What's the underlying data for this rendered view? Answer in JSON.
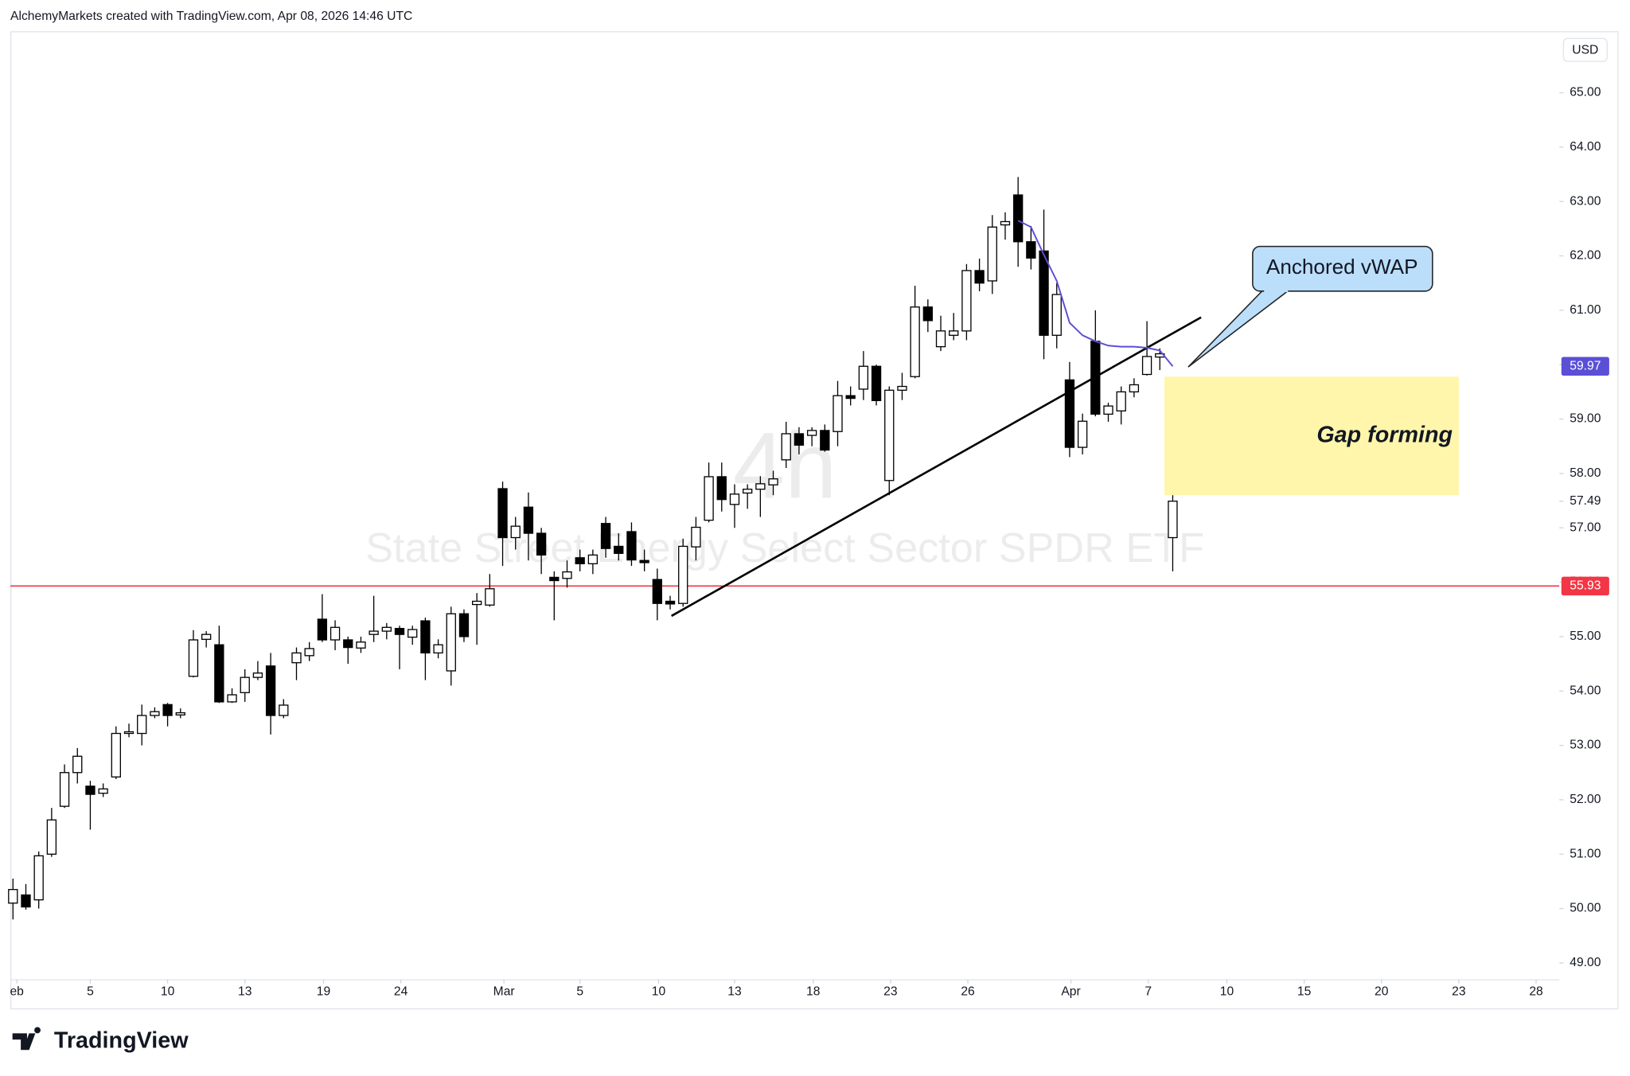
{
  "header": {
    "credit": "AlchemyMarkets created with TradingView.com, Apr 08, 2026 14:46 UTC",
    "logo": "TradingView"
  },
  "chart_data": {
    "type": "candlestick",
    "interval": "4h",
    "symbol": "State Street Energy Select Sector SPDR ETF",
    "currency": "USD",
    "open": [
      50.1,
      50.25,
      50.16,
      51.0,
      51.88,
      52.5,
      52.25,
      52.12,
      52.42,
      53.22,
      53.22,
      53.55,
      53.75,
      53.56,
      54.27,
      54.95,
      54.85,
      53.8,
      53.97,
      54.25,
      54.46,
      53.55,
      54.52,
      54.65,
      55.32,
      54.94,
      54.94,
      54.79,
      55.04,
      55.1,
      55.15,
      54.99,
      55.29,
      54.7,
      54.37,
      55.42,
      55.59,
      55.58,
      57.72,
      56.82,
      57.38,
      56.9,
      56.09,
      56.07,
      56.45,
      56.34,
      57.08,
      56.66,
      56.93,
      56.4,
      56.05,
      55.65,
      55.61,
      56.65,
      57.14,
      57.94,
      57.43,
      57.64,
      57.71,
      57.79,
      58.25,
      58.73,
      58.7,
      58.79,
      58.77,
      59.43,
      59.55,
      59.97,
      57.87,
      59.53,
      59.78,
      61.06,
      60.33,
      60.54,
      60.62,
      61.73,
      61.54,
      62.57,
      63.12,
      62.26,
      62.09,
      60.54,
      59.72,
      58.48,
      60.43,
      59.09,
      59.15,
      59.5,
      59.82,
      60.14,
      56.82
    ],
    "high": [
      50.55,
      50.45,
      51.05,
      51.85,
      52.65,
      52.95,
      52.35,
      52.3,
      53.35,
      53.4,
      53.75,
      53.7,
      53.78,
      53.68,
      55.12,
      55.1,
      55.2,
      54.05,
      54.4,
      54.55,
      54.7,
      53.85,
      54.8,
      54.9,
      55.78,
      55.3,
      55.0,
      55.0,
      55.75,
      55.25,
      55.2,
      55.2,
      55.35,
      54.95,
      55.55,
      55.5,
      55.8,
      56.15,
      57.85,
      57.2,
      57.65,
      57.0,
      56.2,
      56.4,
      56.6,
      56.6,
      57.2,
      56.9,
      57.1,
      56.6,
      56.25,
      55.75,
      56.8,
      57.2,
      58.2,
      58.2,
      57.8,
      57.8,
      57.95,
      58.05,
      58.95,
      58.85,
      58.85,
      58.9,
      59.7,
      59.6,
      60.25,
      60.0,
      59.6,
      59.85,
      61.45,
      61.2,
      60.9,
      60.95,
      61.85,
      61.95,
      62.75,
      62.8,
      63.45,
      62.55,
      62.85,
      61.5,
      60.05,
      59.1,
      61.0,
      59.3,
      59.6,
      59.75,
      60.8,
      60.3,
      57.6
    ],
    "low": [
      49.8,
      49.98,
      50.0,
      50.95,
      51.85,
      52.3,
      51.45,
      52.05,
      52.38,
      53.15,
      53.0,
      53.5,
      53.35,
      53.5,
      54.25,
      54.8,
      53.78,
      53.78,
      53.8,
      54.2,
      53.2,
      53.5,
      54.2,
      54.55,
      54.9,
      54.75,
      54.5,
      54.7,
      54.9,
      54.95,
      54.4,
      54.85,
      54.2,
      54.6,
      54.1,
      54.9,
      54.85,
      55.55,
      56.3,
      56.6,
      56.4,
      56.15,
      55.3,
      55.9,
      56.2,
      56.15,
      56.45,
      56.4,
      56.3,
      56.2,
      55.3,
      55.5,
      55.55,
      56.4,
      57.1,
      57.3,
      57.0,
      57.35,
      57.2,
      57.6,
      58.1,
      58.35,
      58.5,
      58.4,
      58.5,
      59.25,
      59.35,
      59.25,
      57.6,
      59.35,
      59.75,
      60.6,
      60.25,
      60.45,
      60.45,
      61.35,
      61.3,
      62.3,
      61.8,
      61.75,
      60.1,
      60.3,
      58.3,
      58.35,
      59.05,
      58.95,
      58.9,
      59.4,
      59.8,
      59.9,
      56.2
    ],
    "close": [
      50.35,
      50.03,
      50.97,
      51.63,
      52.5,
      52.8,
      52.1,
      52.2,
      53.22,
      53.25,
      53.55,
      53.62,
      53.55,
      53.6,
      54.94,
      55.04,
      53.8,
      53.93,
      54.25,
      54.33,
      53.55,
      53.74,
      54.7,
      54.78,
      54.94,
      55.17,
      54.8,
      54.9,
      55.1,
      55.17,
      55.04,
      55.13,
      54.7,
      54.85,
      55.42,
      55.0,
      55.65,
      55.88,
      56.82,
      57.03,
      56.9,
      56.5,
      56.03,
      56.19,
      56.34,
      56.5,
      56.62,
      56.53,
      56.41,
      56.36,
      55.61,
      55.6,
      56.66,
      57.01,
      57.94,
      57.52,
      57.62,
      57.71,
      57.81,
      57.9,
      58.73,
      58.52,
      58.79,
      58.43,
      59.43,
      59.38,
      59.97,
      59.34,
      59.53,
      59.6,
      61.06,
      60.81,
      60.62,
      60.62,
      61.73,
      61.5,
      62.53,
      62.63,
      62.26,
      61.96,
      60.54,
      61.29,
      58.48,
      58.96,
      59.09,
      59.24,
      59.5,
      59.63,
      60.15,
      60.2,
      57.49
    ],
    "up_color": "#ffffff",
    "down_color": "#000000",
    "xlim": [
      -0.2,
      120
    ],
    "xticks": [
      {
        "value": 0.3,
        "label": "eb"
      },
      {
        "value": 6,
        "label": "5"
      },
      {
        "value": 12,
        "label": "10"
      },
      {
        "value": 18,
        "label": "13"
      },
      {
        "value": 24.1,
        "label": "19"
      },
      {
        "value": 30.1,
        "label": "24"
      },
      {
        "value": 38.1,
        "label": "Mar"
      },
      {
        "value": 44,
        "label": "5"
      },
      {
        "value": 50.1,
        "label": "10"
      },
      {
        "value": 56,
        "label": "13"
      },
      {
        "value": 62.1,
        "label": "18"
      },
      {
        "value": 68.1,
        "label": "23"
      },
      {
        "value": 74.1,
        "label": "26"
      },
      {
        "value": 82.1,
        "label": "Apr"
      },
      {
        "value": 88.1,
        "label": "7"
      },
      {
        "value": 94.2,
        "label": "10"
      },
      {
        "value": 100.2,
        "label": "15"
      },
      {
        "value": 106.2,
        "label": "20"
      },
      {
        "value": 112.2,
        "label": "23"
      },
      {
        "value": 118.2,
        "label": "28"
      }
    ],
    "ylim": [
      48.7,
      66.13
    ],
    "yticks": [
      {
        "value": 49,
        "label": "49.00"
      },
      {
        "value": 50,
        "label": "50.00"
      },
      {
        "value": 51,
        "label": "51.00"
      },
      {
        "value": 52,
        "label": "52.00"
      },
      {
        "value": 53,
        "label": "53.00"
      },
      {
        "value": 54,
        "label": "54.00"
      },
      {
        "value": 55,
        "label": "55.00"
      },
      {
        "value": 56,
        "label": "56.00"
      },
      {
        "value": 57,
        "label": "57.00"
      },
      {
        "value": 58,
        "label": "58.00"
      },
      {
        "value": 59,
        "label": "59.00"
      },
      {
        "value": 60,
        "label": "60.00"
      },
      {
        "value": 61,
        "label": "61.00"
      },
      {
        "value": 62,
        "label": "62.00"
      },
      {
        "value": 63,
        "label": "63.00"
      },
      {
        "value": 64,
        "label": "64.00"
      },
      {
        "value": 65,
        "label": "65.00"
      }
    ],
    "vwap": {
      "x": [
        78,
        79,
        80,
        81,
        82,
        83,
        84,
        85,
        86,
        87,
        88,
        89,
        90
      ],
      "values": [
        62.65,
        62.53,
        62.02,
        61.54,
        60.77,
        60.54,
        60.43,
        60.35,
        60.33,
        60.33,
        60.31,
        60.26,
        59.97
      ],
      "color": "#5b4fd6"
    },
    "trendline": {
      "x": [
        51.1,
        92.2
      ],
      "values": [
        55.38,
        60.87
      ],
      "color": "#000000"
    },
    "price_labels": [
      {
        "value": 59.97,
        "label": "59.97",
        "color": "#5b4fd6"
      },
      {
        "value": 55.93,
        "label": "55.93",
        "color": "#f23645",
        "line": true
      },
      {
        "value": 57.49,
        "label": "57.49"
      }
    ],
    "gap_zone": {
      "x": [
        89.35,
        112.2
      ],
      "values": [
        59.78,
        57.6
      ],
      "label": "Gap forming",
      "color": "#fff59d"
    },
    "callout": {
      "label": "Anchored vWAP",
      "color": "#bbdefb"
    }
  }
}
